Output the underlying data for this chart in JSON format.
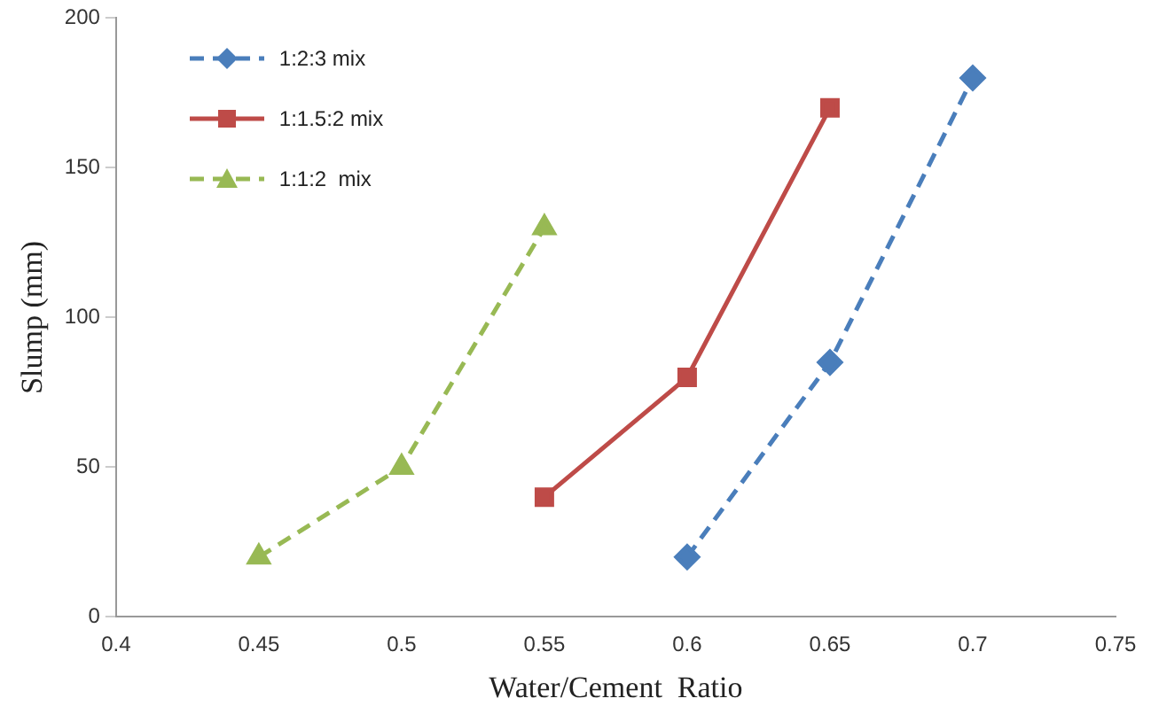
{
  "chart_data": {
    "type": "line",
    "xlabel": "Water/Cement  Ratio",
    "ylabel": "Slump (mm)",
    "xlim": [
      0.4,
      0.75
    ],
    "xticks": [
      0.4,
      0.45,
      0.5,
      0.55,
      0.6,
      0.65,
      0.7,
      0.75
    ],
    "ylim": [
      0,
      200
    ],
    "yticks": [
      0,
      50,
      100,
      150,
      200
    ],
    "grid": false,
    "legend": "top left",
    "series": [
      {
        "name": "1:2:3 mix",
        "color": "#4a7ebb",
        "x": [
          0.6,
          0.65,
          0.7
        ],
        "values": [
          20,
          85,
          180
        ],
        "marker": "diamond",
        "line_style": "dashed"
      },
      {
        "name": "1:1.5:2 mix",
        "color": "#be4b48",
        "x": [
          0.55,
          0.6,
          0.65
        ],
        "values": [
          40,
          80,
          170
        ],
        "marker": "square",
        "line_style": "solid"
      },
      {
        "name": "1:1:2  mix",
        "color": "#98b954",
        "x": [
          0.45,
          0.5,
          0.55
        ],
        "values": [
          20,
          50,
          130
        ],
        "marker": "triangle",
        "line_style": "dashed"
      }
    ]
  }
}
